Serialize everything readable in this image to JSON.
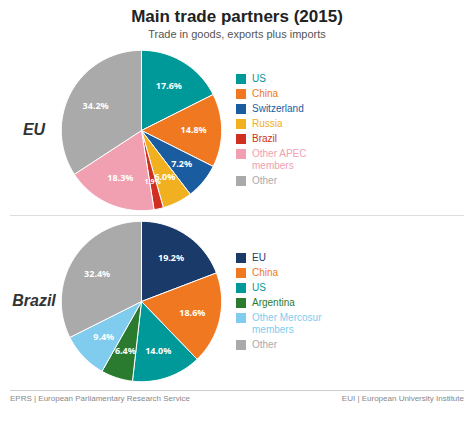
{
  "title": "Main trade partners (2015)",
  "subtitle": "Trade in goods, exports plus imports",
  "annotations": [
    "EPRS | European Parliamentary Research Service",
    "EUI | European University Institute"
  ],
  "chart_data": [
    {
      "type": "pie",
      "title": "EU",
      "categories": [
        "US",
        "China",
        "Switzerland",
        "Russia",
        "Brazil",
        "Other APEC\nmembers",
        "Other"
      ],
      "values": [
        17.6,
        14.8,
        7.2,
        6.0,
        1.9,
        18.3,
        34.2
      ],
      "value_labels": [
        "17.6%",
        "14.8%",
        "7.2%",
        "6.0%",
        "1.9%",
        "18.3%",
        "34.2%"
      ],
      "colors": [
        "#009999",
        "#F07820",
        "#1A5CA0",
        "#F0B020",
        "#D03020",
        "#F0A0B0",
        "#AAAAAA"
      ],
      "data_labels": true,
      "legend": "right"
    },
    {
      "type": "pie",
      "title": "Brazil",
      "categories": [
        "EU",
        "China",
        "US",
        "Argentina",
        "Other Mercosur\nmembers",
        "Other"
      ],
      "values": [
        19.2,
        18.6,
        14.0,
        6.4,
        9.4,
        32.4
      ],
      "value_labels": [
        "19.2%",
        "18.6%",
        "14.0%",
        "6.4%",
        "9.4%",
        "32.4%"
      ],
      "colors": [
        "#1A3A6A",
        "#F07820",
        "#009999",
        "#2A7A30",
        "#80CCEE",
        "#AAAAAA"
      ],
      "data_labels": true,
      "legend": "right"
    }
  ]
}
